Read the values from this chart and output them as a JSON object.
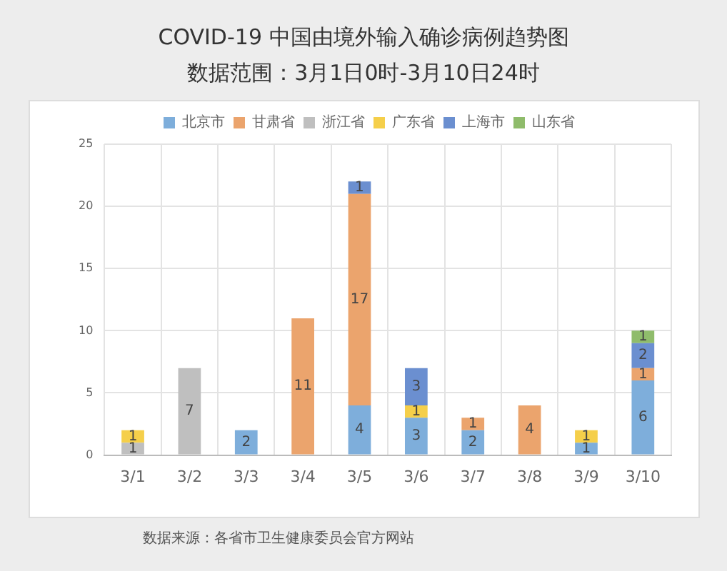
{
  "chart_data": {
    "type": "bar",
    "title": "COVID-19 中国由境外输入确诊病例趋势图",
    "subtitle": "数据范围：3月1日0时-3月10日24时",
    "annotations": [
      "数据来源：各省市卫生健康委员会官方网站"
    ],
    "categories": [
      "3/1",
      "3/2",
      "3/3",
      "3/4",
      "3/5",
      "3/6",
      "3/7",
      "3/8",
      "3/9",
      "3/10"
    ],
    "series": [
      {
        "name": "北京市",
        "color": "#7eaedb",
        "values": [
          null,
          null,
          2,
          null,
          4,
          3,
          2,
          null,
          1,
          6
        ]
      },
      {
        "name": "甘肃省",
        "color": "#eba46d",
        "values": [
          null,
          null,
          null,
          11,
          17,
          null,
          1,
          4,
          null,
          1
        ]
      },
      {
        "name": "浙江省",
        "color": "#bfbfbf",
        "values": [
          1,
          7,
          null,
          null,
          null,
          null,
          null,
          null,
          null,
          null
        ]
      },
      {
        "name": "广东省",
        "color": "#f5cf4a",
        "values": [
          1,
          null,
          null,
          null,
          null,
          1,
          null,
          null,
          1,
          null
        ]
      },
      {
        "name": "上海市",
        "color": "#6b8fd0",
        "values": [
          null,
          null,
          null,
          null,
          1,
          3,
          null,
          null,
          null,
          2
        ]
      },
      {
        "name": "山东省",
        "color": "#8fbc6b",
        "values": [
          null,
          null,
          null,
          null,
          null,
          null,
          null,
          null,
          null,
          1
        ]
      }
    ],
    "stacked": true,
    "ylim": [
      0,
      25
    ],
    "yticks": [
      0,
      5,
      10,
      15,
      20,
      25
    ],
    "grid": true,
    "legend": "top",
    "data_labels": true
  }
}
